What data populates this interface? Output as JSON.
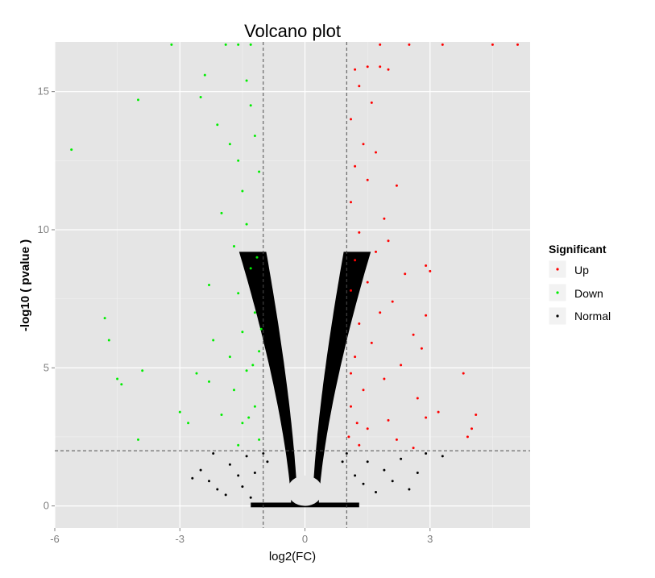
{
  "chart_data": {
    "type": "scatter",
    "title": "Volcano plot",
    "xlabel": "log2(FC)",
    "ylabel": "-log10 ( pvalue )",
    "xlim": [
      -6,
      5.4
    ],
    "ylim": [
      -0.8,
      16.8
    ],
    "x_ticks": [
      -6,
      -3,
      0,
      3
    ],
    "x_tick_labels": [
      "-6",
      "-3",
      "0",
      "3"
    ],
    "y_ticks": [
      0,
      5,
      10,
      15
    ],
    "y_tick_labels": [
      "0",
      "5",
      "10",
      "15"
    ],
    "grid": true,
    "thresholds": {
      "log2fc": [
        -1,
        1
      ],
      "neg_log10_p": 2
    },
    "legend": {
      "title": "Significant",
      "position": "right",
      "entries": [
        {
          "label": "Up",
          "color": "#ff0000"
        },
        {
          "label": "Down",
          "color": "#00ee00"
        },
        {
          "label": "Normal",
          "color": "#000000"
        }
      ]
    },
    "series": [
      {
        "name": "Up",
        "color": "#ff0000",
        "points": [
          [
            1.2,
            15.8
          ],
          [
            1.5,
            15.9
          ],
          [
            1.8,
            15.9
          ],
          [
            2.0,
            15.8
          ],
          [
            1.3,
            15.2
          ],
          [
            1.6,
            14.6
          ],
          [
            1.1,
            14.0
          ],
          [
            1.4,
            13.1
          ],
          [
            1.7,
            12.8
          ],
          [
            1.2,
            12.3
          ],
          [
            1.5,
            11.8
          ],
          [
            2.2,
            11.6
          ],
          [
            1.1,
            11.0
          ],
          [
            1.9,
            10.4
          ],
          [
            1.3,
            9.9
          ],
          [
            2.0,
            9.6
          ],
          [
            1.7,
            9.2
          ],
          [
            1.2,
            8.9
          ],
          [
            2.9,
            8.7
          ],
          [
            2.4,
            8.4
          ],
          [
            1.5,
            8.1
          ],
          [
            3.0,
            8.5
          ],
          [
            1.1,
            7.8
          ],
          [
            2.1,
            7.4
          ],
          [
            1.8,
            7.0
          ],
          [
            2.9,
            6.9
          ],
          [
            1.3,
            6.6
          ],
          [
            2.6,
            6.2
          ],
          [
            1.6,
            5.9
          ],
          [
            2.8,
            5.7
          ],
          [
            1.2,
            5.4
          ],
          [
            2.3,
            5.1
          ],
          [
            3.8,
            4.8
          ],
          [
            1.9,
            4.6
          ],
          [
            1.4,
            4.2
          ],
          [
            2.7,
            3.9
          ],
          [
            1.1,
            3.6
          ],
          [
            3.2,
            3.4
          ],
          [
            2.0,
            3.1
          ],
          [
            4.1,
            3.3
          ],
          [
            2.9,
            3.2
          ],
          [
            1.5,
            2.8
          ],
          [
            4.0,
            2.8
          ],
          [
            3.9,
            2.5
          ],
          [
            2.2,
            2.4
          ],
          [
            1.3,
            2.2
          ],
          [
            2.6,
            2.1
          ],
          [
            1.8,
            16.7
          ],
          [
            2.5,
            16.7
          ],
          [
            3.3,
            16.7
          ],
          [
            4.5,
            16.7
          ],
          [
            5.1,
            16.7
          ],
          [
            1.05,
            2.5
          ],
          [
            1.1,
            4.8
          ],
          [
            1.25,
            3.0
          ]
        ]
      },
      {
        "name": "Down",
        "color": "#00ee00",
        "points": [
          [
            -5.6,
            12.9
          ],
          [
            -4.0,
            14.7
          ],
          [
            -4.8,
            6.8
          ],
          [
            -4.7,
            6.0
          ],
          [
            -4.5,
            4.6
          ],
          [
            -4.4,
            4.4
          ],
          [
            -3.9,
            4.9
          ],
          [
            -4.0,
            2.4
          ],
          [
            -3.0,
            3.4
          ],
          [
            -2.6,
            4.8
          ],
          [
            -2.4,
            15.6
          ],
          [
            -2.5,
            14.8
          ],
          [
            -2.1,
            13.8
          ],
          [
            -2.0,
            10.6
          ],
          [
            -2.3,
            8.0
          ],
          [
            -2.2,
            6.0
          ],
          [
            -2.3,
            4.5
          ],
          [
            -2.0,
            3.3
          ],
          [
            -1.8,
            13.1
          ],
          [
            -1.6,
            12.5
          ],
          [
            -1.5,
            11.4
          ],
          [
            -1.4,
            10.2
          ],
          [
            -1.7,
            9.4
          ],
          [
            -1.3,
            8.6
          ],
          [
            -1.6,
            7.7
          ],
          [
            -1.2,
            7.0
          ],
          [
            -1.5,
            6.3
          ],
          [
            -1.1,
            5.6
          ],
          [
            -1.4,
            4.9
          ],
          [
            -1.7,
            4.2
          ],
          [
            -1.2,
            3.6
          ],
          [
            -1.5,
            3.0
          ],
          [
            -1.1,
            2.4
          ],
          [
            -1.6,
            2.2
          ],
          [
            -1.4,
            15.4
          ],
          [
            -1.3,
            14.5
          ],
          [
            -1.2,
            13.4
          ],
          [
            -1.1,
            12.1
          ],
          [
            -1.9,
            16.7
          ],
          [
            -1.6,
            16.7
          ],
          [
            -1.3,
            16.7
          ],
          [
            -3.2,
            16.7
          ],
          [
            -1.15,
            9.0
          ],
          [
            -1.05,
            6.4
          ],
          [
            -1.25,
            5.1
          ],
          [
            -1.35,
            3.2
          ],
          [
            -1.8,
            5.4
          ],
          [
            -2.8,
            3.0
          ]
        ]
      },
      {
        "name": "Normal",
        "color": "#000000",
        "points": [
          [
            -2.5,
            1.3
          ],
          [
            -2.3,
            0.9
          ],
          [
            -2.1,
            0.6
          ],
          [
            -1.9,
            0.4
          ],
          [
            -1.8,
            1.5
          ],
          [
            -1.6,
            1.1
          ],
          [
            -1.5,
            0.7
          ],
          [
            -1.4,
            1.8
          ],
          [
            -1.3,
            0.3
          ],
          [
            -1.2,
            1.2
          ],
          [
            1.2,
            1.1
          ],
          [
            1.4,
            0.8
          ],
          [
            1.5,
            1.6
          ],
          [
            1.7,
            0.5
          ],
          [
            1.9,
            1.3
          ],
          [
            2.1,
            0.9
          ],
          [
            2.3,
            1.7
          ],
          [
            2.5,
            0.6
          ],
          [
            2.7,
            1.2
          ],
          [
            2.9,
            1.9
          ],
          [
            3.3,
            1.8
          ],
          [
            -2.7,
            1.0
          ],
          [
            -2.2,
            1.9
          ],
          [
            1.0,
            1.9
          ],
          [
            -1.0,
            1.9
          ],
          [
            0.9,
            1.6
          ],
          [
            -0.9,
            1.6
          ]
        ]
      }
    ]
  }
}
